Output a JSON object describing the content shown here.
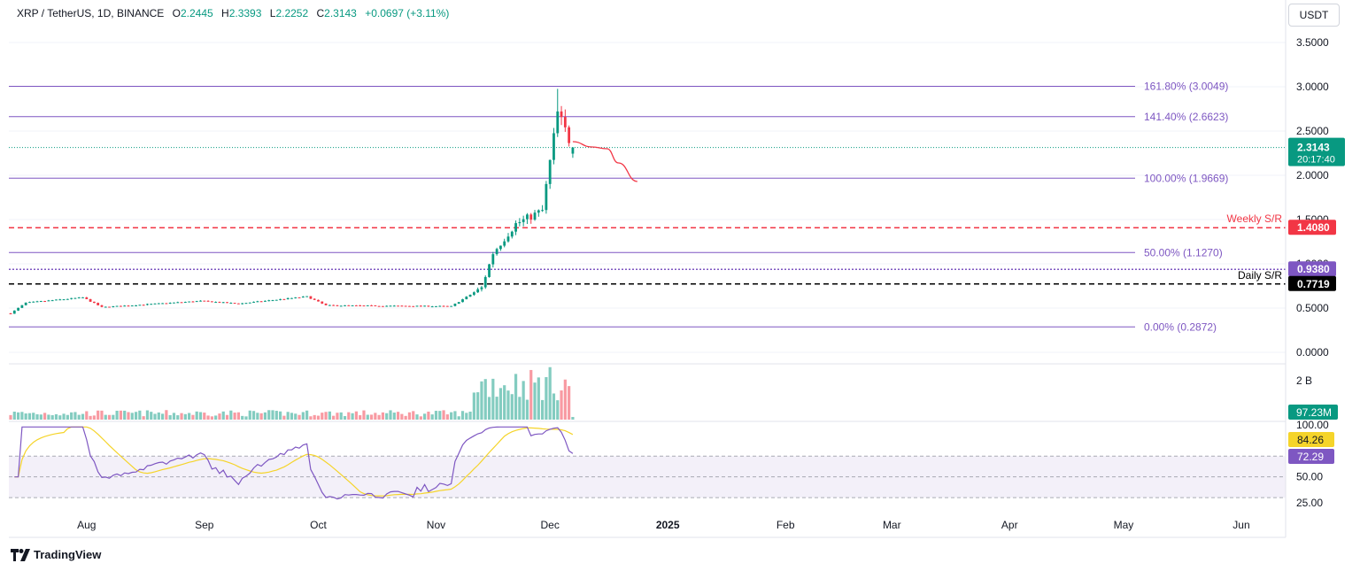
{
  "header": {
    "symbol": "XRP / TetherUS, 1D, BINANCE",
    "open_label": "O",
    "open": "2.2445",
    "high_label": "H",
    "high": "2.3393",
    "low_label": "L",
    "low": "2.2252",
    "close_label": "C",
    "close": "2.3143",
    "change": "+0.0697 (+3.11%)"
  },
  "unit_button": "USDT",
  "brand": "TradingView",
  "colors": {
    "up": "#089981",
    "down": "#f23645",
    "fib": "#7e57c2",
    "weekly": "#f23645",
    "daily": "#000000",
    "rsi": "#7e57c2",
    "rsi_ma": "#f5d42a",
    "projection": "#f23645"
  },
  "chart_data": {
    "type": "candlestick",
    "title": "XRP / TetherUS, 1D, BINANCE",
    "price_axis": {
      "ylim": [
        0,
        3.7
      ],
      "ticks": [
        "0.0000",
        "0.5000",
        "1.0000",
        "1.5000",
        "2.0000",
        "2.5000",
        "3.0000",
        "3.5000"
      ]
    },
    "time_axis": {
      "ticks": [
        "Aug",
        "Sep",
        "Oct",
        "Nov",
        "Dec",
        "2025",
        "Feb",
        "Mar",
        "Apr",
        "May",
        "Jun"
      ],
      "range": [
        "2024-07-12",
        "2025-06-27"
      ]
    },
    "price_segments": [
      {
        "from": "2024-07-12",
        "to": "2024-07-16",
        "start": 0.44,
        "end": 0.56
      },
      {
        "from": "2024-07-16",
        "to": "2024-07-31",
        "start": 0.56,
        "end": 0.62
      },
      {
        "from": "2024-07-31",
        "to": "2024-08-05",
        "start": 0.62,
        "end": 0.51
      },
      {
        "from": "2024-08-05",
        "to": "2024-08-31",
        "start": 0.51,
        "end": 0.58
      },
      {
        "from": "2024-08-31",
        "to": "2024-09-10",
        "start": 0.58,
        "end": 0.55
      },
      {
        "from": "2024-09-10",
        "to": "2024-09-28",
        "start": 0.55,
        "end": 0.63
      },
      {
        "from": "2024-09-28",
        "to": "2024-10-03",
        "start": 0.63,
        "end": 0.53
      },
      {
        "from": "2024-10-03",
        "to": "2024-11-05",
        "start": 0.53,
        "end": 0.52
      },
      {
        "from": "2024-11-05",
        "to": "2024-11-13",
        "start": 0.52,
        "end": 0.73
      },
      {
        "from": "2024-11-13",
        "to": "2024-11-16",
        "start": 0.73,
        "end": 1.12
      },
      {
        "from": "2024-11-16",
        "to": "2024-11-22",
        "start": 1.12,
        "end": 1.45
      },
      {
        "from": "2024-11-22",
        "to": "2024-11-29",
        "start": 1.45,
        "end": 1.6
      },
      {
        "from": "2024-11-29",
        "to": "2024-12-03",
        "start": 1.6,
        "end": 2.7
      },
      {
        "from": "2024-12-03",
        "to": "2024-12-07",
        "start": 2.7,
        "end": 2.31
      }
    ],
    "last_price": "2.3143",
    "countdown": "20:17:40",
    "fib_levels": [
      {
        "label": "161.80% (3.0049)",
        "value": 3.0049
      },
      {
        "label": "141.40% (2.6623)",
        "value": 2.6623
      },
      {
        "label": "100.00% (1.9669)",
        "value": 1.9669
      },
      {
        "label": "50.00% (1.1270)",
        "value": 1.127
      },
      {
        "label": "0.00% (0.2872)",
        "value": 0.2872
      }
    ],
    "support_resistance": [
      {
        "label": "Weekly S/R",
        "value": "1.4080",
        "price": 1.408,
        "style": "dashed-red"
      },
      {
        "label": "",
        "value": "0.9380",
        "price": 0.938,
        "style": "dotted-purple"
      },
      {
        "label": "Daily S/R",
        "value": "0.7719",
        "price": 0.7719,
        "style": "dashed-black"
      }
    ],
    "projection_path": [
      {
        "date": "2024-12-07",
        "price": 2.38
      },
      {
        "date": "2024-12-12",
        "price": 2.32
      },
      {
        "date": "2024-12-16",
        "price": 2.3
      },
      {
        "date": "2024-12-19",
        "price": 2.14
      },
      {
        "date": "2024-12-24",
        "price": 1.93
      }
    ],
    "volume": {
      "axis_label": "2 B",
      "last": "97.23M"
    },
    "rsi": {
      "ticks": [
        "100.00",
        "50.00",
        "25.00"
      ],
      "value": "72.29",
      "ma_value": "84.26",
      "upper_band": 70,
      "lower_band": 30
    }
  }
}
